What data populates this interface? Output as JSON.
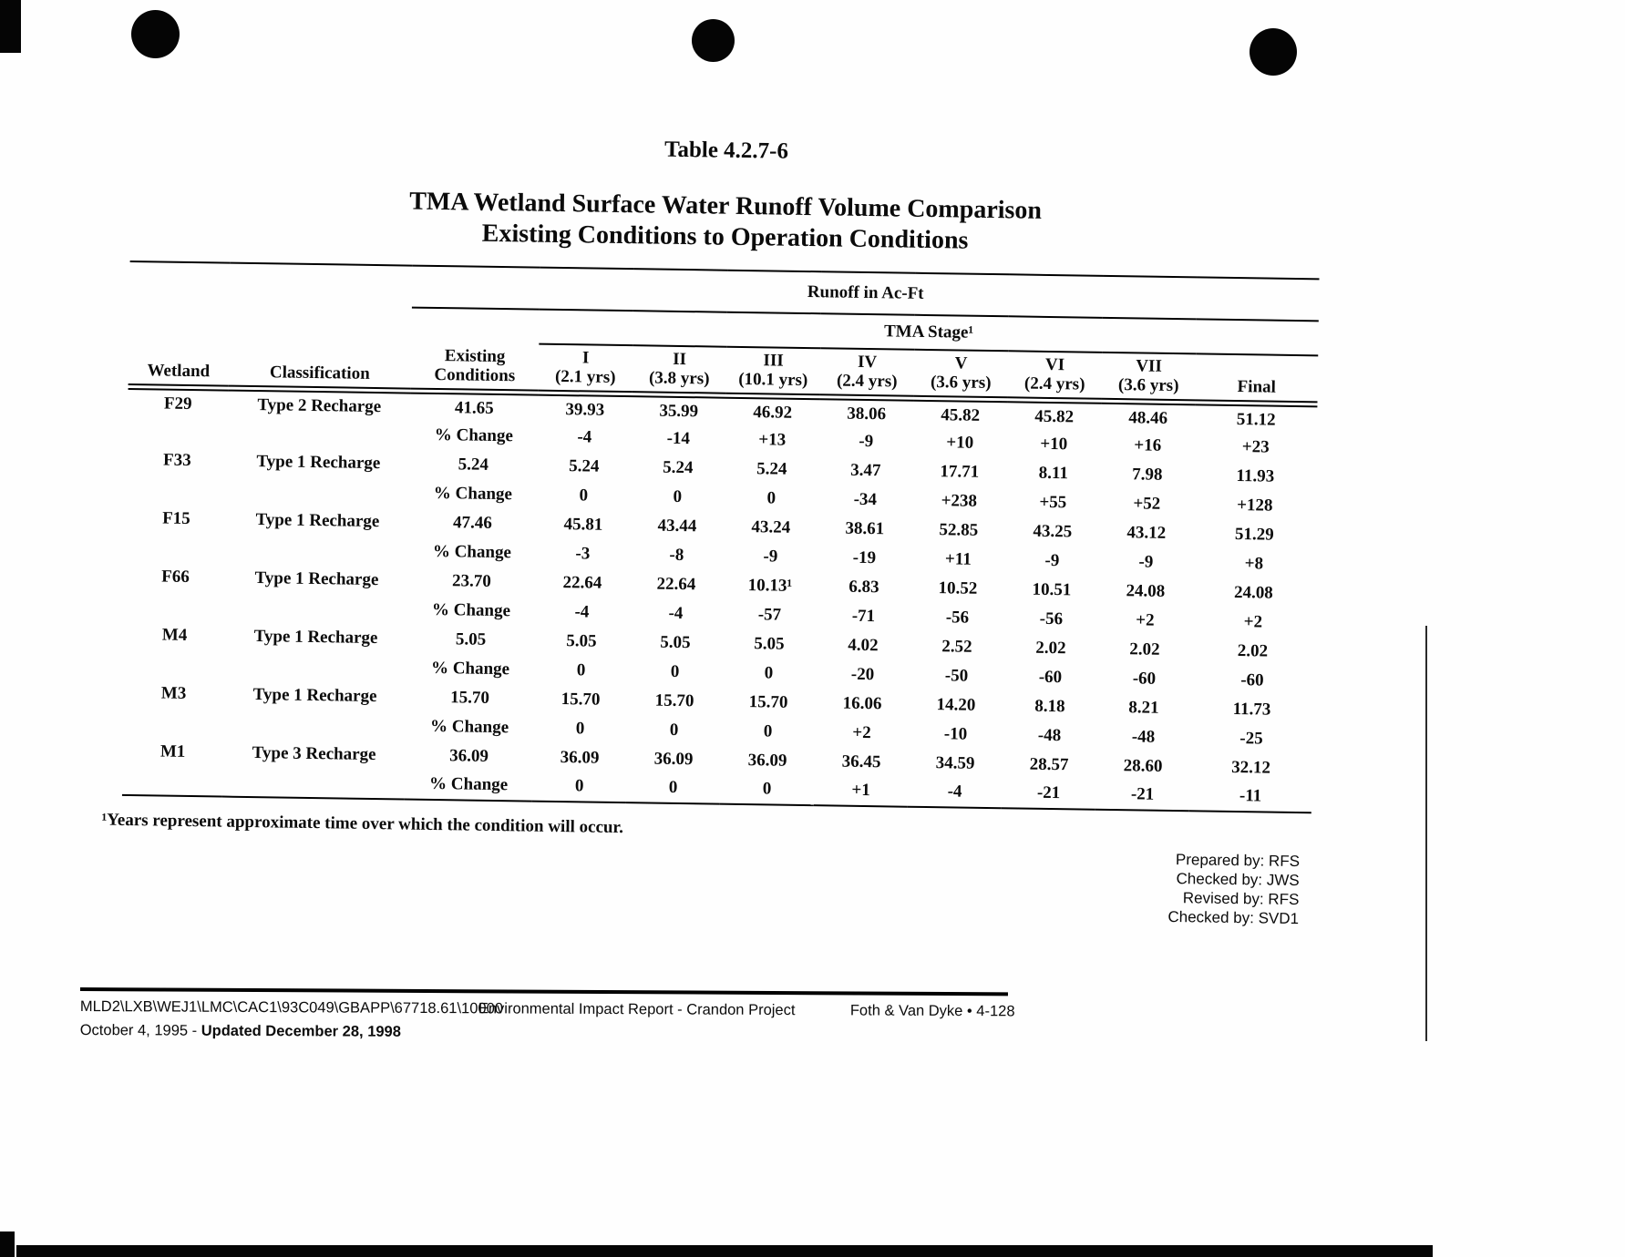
{
  "header": {
    "table_number": "Table 4.2.7-6",
    "title_line1": "TMA Wetland Surface Water Runoff Volume Comparison",
    "title_line2": "Existing Conditions to Operation Conditions"
  },
  "table": {
    "group_header": "Runoff in Ac-Ft",
    "subgroup_header": "TMA Stage¹",
    "pct_change_label": "% Change",
    "columns": {
      "wetland": "Wetland",
      "classification": "Classification",
      "existing_line1": "Existing",
      "existing_line2": "Conditions",
      "stages": [
        {
          "numeral": "I",
          "years": "(2.1 yrs)"
        },
        {
          "numeral": "II",
          "years": "(3.8 yrs)"
        },
        {
          "numeral": "III",
          "years": "(10.1 yrs)"
        },
        {
          "numeral": "IV",
          "years": "(2.4 yrs)"
        },
        {
          "numeral": "V",
          "years": "(3.6 yrs)"
        },
        {
          "numeral": "VI",
          "years": "(2.4 yrs)"
        },
        {
          "numeral": "VII",
          "years": "(3.6 yrs)"
        }
      ],
      "final": "Final"
    },
    "rows": [
      {
        "wetland": "F29",
        "classification": "Type 2 Recharge",
        "existing": "41.65",
        "values": [
          "39.93",
          "35.99",
          "46.92",
          "38.06",
          "45.82",
          "45.82",
          "48.46",
          "51.12"
        ],
        "pct_change": [
          "-4",
          "-14",
          "+13",
          "-9",
          "+10",
          "+10",
          "+16",
          "+23"
        ]
      },
      {
        "wetland": "F33",
        "classification": "Type 1 Recharge",
        "existing": "5.24",
        "values": [
          "5.24",
          "5.24",
          "5.24",
          "3.47",
          "17.71",
          "8.11",
          "7.98",
          "11.93"
        ],
        "pct_change": [
          "0",
          "0",
          "0",
          "-34",
          "+238",
          "+55",
          "+52",
          "+128"
        ]
      },
      {
        "wetland": "F15",
        "classification": "Type 1 Recharge",
        "existing": "47.46",
        "values": [
          "45.81",
          "43.44",
          "43.24",
          "38.61",
          "52.85",
          "43.25",
          "43.12",
          "51.29"
        ],
        "pct_change": [
          "-3",
          "-8",
          "-9",
          "-19",
          "+11",
          "-9",
          "-9",
          "+8"
        ]
      },
      {
        "wetland": "F66",
        "classification": "Type 1 Recharge",
        "existing": "23.70",
        "values": [
          "22.64",
          "22.64",
          "10.13¹",
          "6.83",
          "10.52",
          "10.51",
          "24.08",
          "24.08"
        ],
        "pct_change": [
          "-4",
          "-4",
          "-57",
          "-71",
          "-56",
          "-56",
          "+2",
          "+2"
        ]
      },
      {
        "wetland": "M4",
        "classification": "Type 1 Recharge",
        "existing": "5.05",
        "values": [
          "5.05",
          "5.05",
          "5.05",
          "4.02",
          "2.52",
          "2.02",
          "2.02",
          "2.02"
        ],
        "pct_change": [
          "0",
          "0",
          "0",
          "-20",
          "-50",
          "-60",
          "-60",
          "-60"
        ]
      },
      {
        "wetland": "M3",
        "classification": "Type 1 Recharge",
        "existing": "15.70",
        "values": [
          "15.70",
          "15.70",
          "15.70",
          "16.06",
          "14.20",
          "8.18",
          "8.21",
          "11.73"
        ],
        "pct_change": [
          "0",
          "0",
          "0",
          "+2",
          "-10",
          "-48",
          "-48",
          "-25"
        ]
      },
      {
        "wetland": "M1",
        "classification": "Type 3 Recharge",
        "existing": "36.09",
        "values": [
          "36.09",
          "36.09",
          "36.09",
          "36.45",
          "34.59",
          "28.57",
          "28.60",
          "32.12"
        ],
        "pct_change": [
          "0",
          "0",
          "0",
          "+1",
          "-4",
          "-21",
          "-21",
          "-11"
        ]
      }
    ]
  },
  "footnote": "¹Years represent approximate time over which the condition will occur.",
  "signoff": [
    "Prepared by:  RFS",
    "Checked by:  JWS",
    "Revised by:  RFS",
    "Checked by: SVD1"
  ],
  "footer": {
    "path": "MLD2\\LXB\\WEJ1\\LMC\\CAC1\\93C049\\GBAPP\\67718.61\\10000",
    "report": "Environmental Impact Report - Crandon Project",
    "right": "Foth & Van Dyke • 4-128",
    "date_prefix": "October 4, 1995 - ",
    "date_updated": "Updated December 28, 1998"
  }
}
